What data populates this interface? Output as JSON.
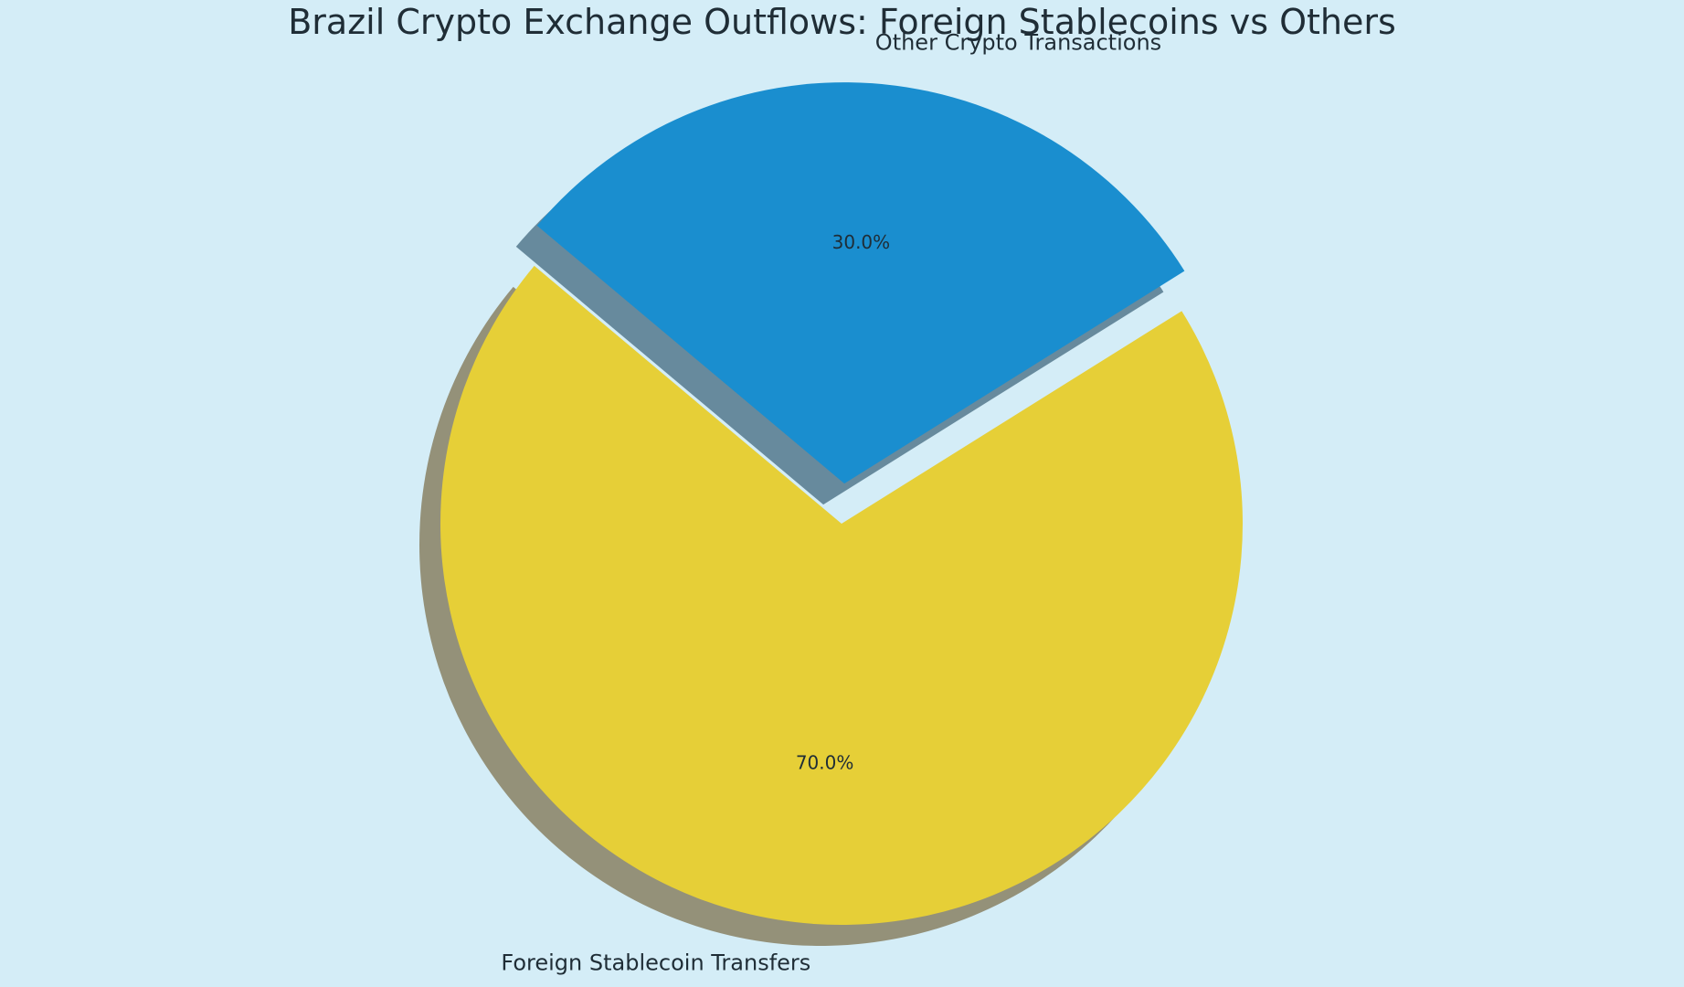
{
  "chart_data": {
    "type": "pie",
    "title": "Brazil Crypto Exchange Outflows: Foreign Stablecoins vs Others",
    "slices": [
      {
        "label": "Foreign Stablecoin Transfers",
        "value": 70.0,
        "percent_label": "70.0%",
        "color": "#e6cf37",
        "shadow_color": "#949179",
        "exploded": false
      },
      {
        "label": "Other Crypto Transactions",
        "value": 30.0,
        "percent_label": "30.0%",
        "color": "#1a8ecf",
        "shadow_color": "#678a9d",
        "exploded": true
      }
    ],
    "start_angle_deg": 140,
    "shadow": true,
    "legend": "none"
  },
  "colors": {
    "background": "#d4edf7",
    "text": "#1f2d36"
  }
}
